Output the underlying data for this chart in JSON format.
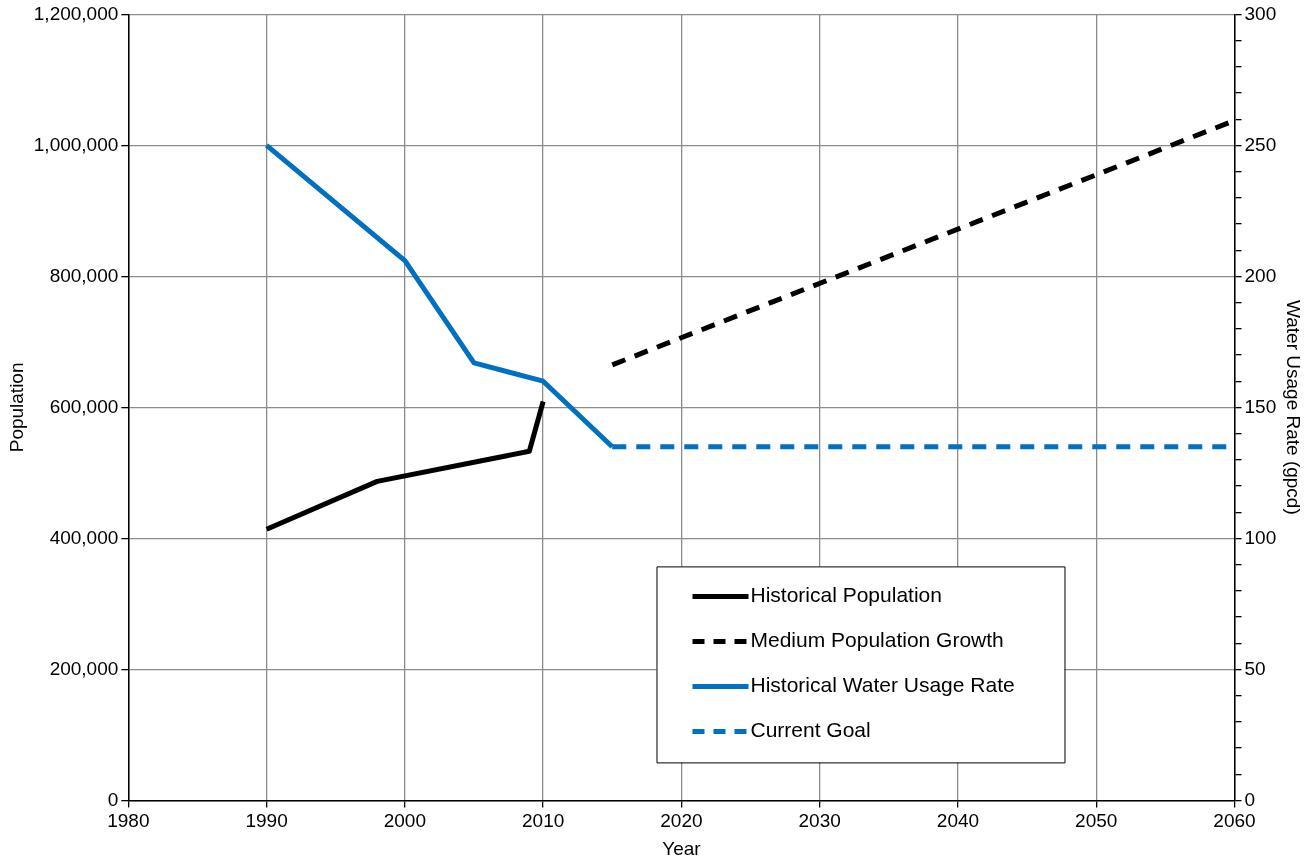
{
  "chart_data": {
    "type": "line",
    "xlabel": "Year",
    "ylabel": "Population",
    "y2label": "Water Usage Rate (gpcd)",
    "xlim": [
      1980,
      2060
    ],
    "xticks": [
      1980,
      1990,
      2000,
      2010,
      2020,
      2030,
      2040,
      2050,
      2060
    ],
    "ylim": [
      0,
      1200000
    ],
    "yticks": [
      {
        "value": 0,
        "label": "0"
      },
      {
        "value": 200000,
        "label": "200,000"
      },
      {
        "value": 400000,
        "label": "400,000"
      },
      {
        "value": 600000,
        "label": "600,000"
      },
      {
        "value": 800000,
        "label": "800,000"
      },
      {
        "value": 1000000,
        "label": "1,000,000"
      },
      {
        "value": 1200000,
        "label": "1,200,000"
      }
    ],
    "y2lim": [
      0,
      300
    ],
    "y2ticks": [
      0,
      {
        "value": 10,
        "label": null
      },
      {
        "value": 20,
        "label": null
      },
      {
        "value": 30,
        "label": null
      },
      {
        "value": 40,
        "label": null
      },
      50,
      {
        "value": 60,
        "label": null
      },
      {
        "value": 70,
        "label": null
      },
      {
        "value": 80,
        "label": null
      },
      {
        "value": 90,
        "label": null
      },
      100,
      {
        "value": 110,
        "label": null
      },
      {
        "value": 120,
        "label": null
      },
      {
        "value": 130,
        "label": null
      },
      {
        "value": 140,
        "label": null
      },
      150,
      {
        "value": 160,
        "label": null
      },
      {
        "value": 170,
        "label": null
      },
      {
        "value": 180,
        "label": null
      },
      {
        "value": 190,
        "label": null
      },
      200,
      {
        "value": 210,
        "label": null
      },
      {
        "value": 220,
        "label": null
      },
      {
        "value": 230,
        "label": null
      },
      {
        "value": 240,
        "label": null
      },
      250,
      {
        "value": 260,
        "label": null
      },
      {
        "value": 270,
        "label": null
      },
      {
        "value": 280,
        "label": null
      },
      {
        "value": 290,
        "label": null
      },
      300
    ],
    "grid": true,
    "legend": "bottom right",
    "marker": "none",
    "series": [
      {
        "name": "Historical Population",
        "color": "#000000",
        "line_style": "solid",
        "x": [
          1990,
          1998,
          2009,
          2010
        ],
        "values": [
          414000,
          487000,
          533000,
          609000
        ]
      },
      {
        "name": "Medium Population Growth",
        "color": "#000000",
        "line_style": "dashed",
        "x": [
          2015,
          2060
        ],
        "values": [
          665000,
          1038000
        ]
      },
      {
        "name": "Historical Water Usage Rate",
        "color": "#0070c0",
        "line_style": "solid",
        "axis": "y2",
        "x": [
          1990,
          2000,
          2005,
          2010,
          2015
        ],
        "values": [
          250,
          206,
          167,
          160,
          135
        ]
      },
      {
        "name": "Current Goal",
        "color": "#0070c0",
        "line_style": "dashed",
        "axis": "y2",
        "x": [
          2015,
          2060
        ],
        "values": [
          135,
          135
        ]
      }
    ]
  }
}
